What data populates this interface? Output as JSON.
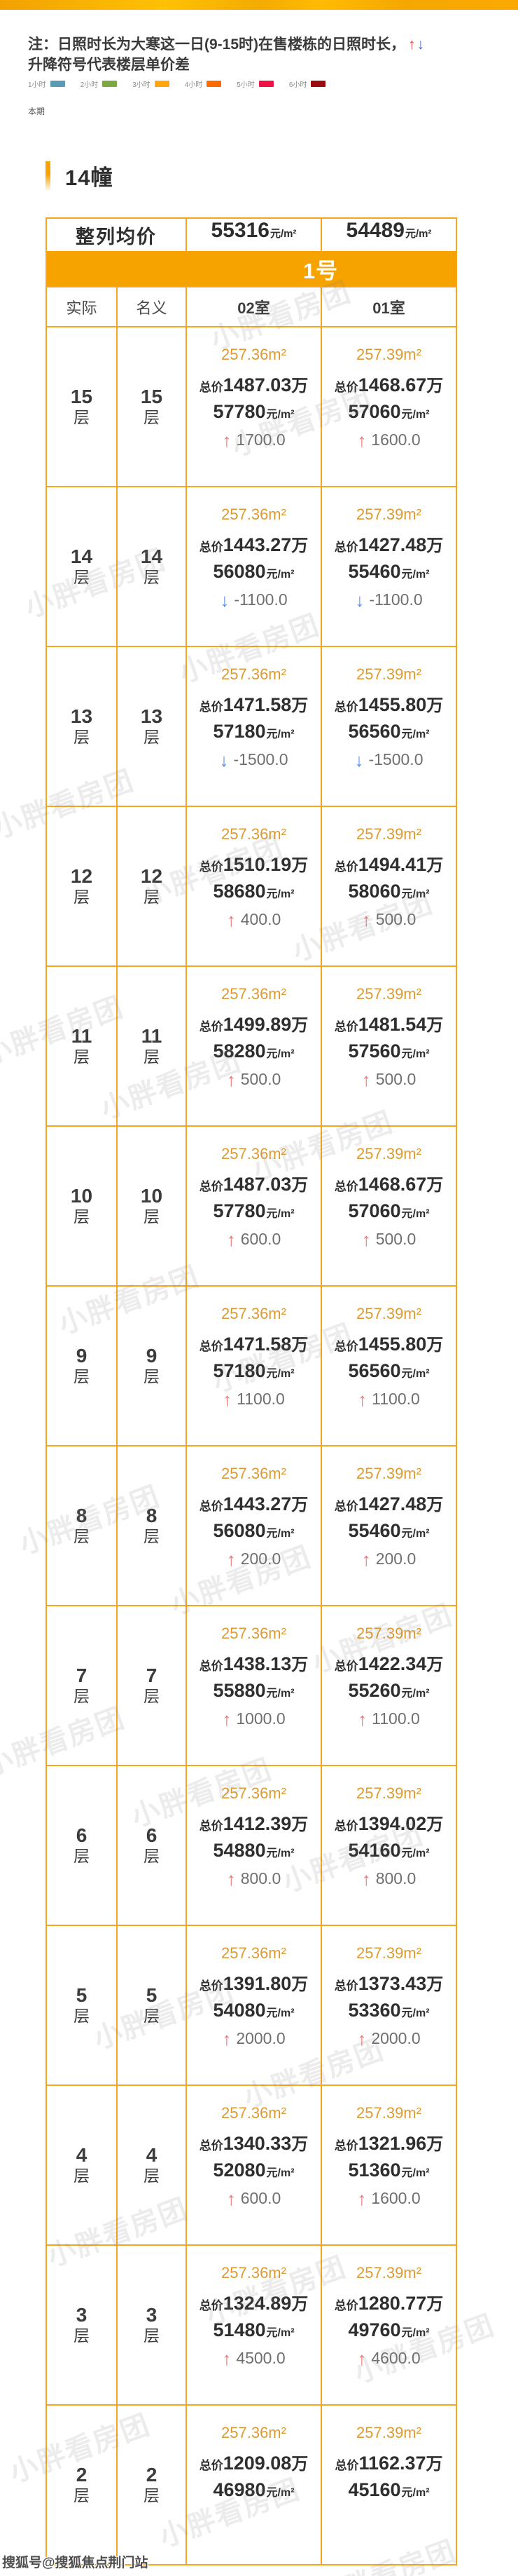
{
  "note": {
    "text_before_arrows": "注：日照时长为大寒这一日(9-15时)在售楼栋的日照时长，",
    "text_after_arrows": "升降符号代表楼层单价差"
  },
  "labels": {
    "up_glyph": "↑",
    "down_glyph": "↓",
    "floor_suffix": "层",
    "total_prefix": "总价",
    "total_suffix": "万",
    "price_unit": "元/m²"
  },
  "legend": [
    {
      "label": "1小时",
      "color": "#5b9ab5"
    },
    {
      "label": "2小时",
      "color": "#7ca844"
    },
    {
      "label": "3小时",
      "color": "#ffa60f"
    },
    {
      "label": "4小时",
      "color": "#ff6a00"
    },
    {
      "label": "5小时",
      "color": "#f01246"
    },
    {
      "label": "6小时",
      "color": "#9b0a0e"
    }
  ],
  "period_label": "本期",
  "building_title": "14幢",
  "summary": {
    "label": "整列均价",
    "values": [
      "55316",
      "54489"
    ],
    "unit": "元/m²"
  },
  "group_label": "1号",
  "columns": [
    "实际",
    "名义",
    "02室",
    "01室"
  ],
  "watermark": "小胖看房团",
  "footer": "搜狐号@搜狐焦点荆门站",
  "rows": [
    {
      "actual": "15",
      "nominal": "15",
      "units": [
        {
          "area": "257.36m²",
          "total": "1487.03",
          "price": "57780",
          "dir": "up",
          "change": "1700.0"
        },
        {
          "area": "257.39m²",
          "total": "1468.67",
          "price": "57060",
          "dir": "up",
          "change": "1600.0"
        }
      ]
    },
    {
      "actual": "14",
      "nominal": "14",
      "units": [
        {
          "area": "257.36m²",
          "total": "1443.27",
          "price": "56080",
          "dir": "down",
          "change": "-1100.0"
        },
        {
          "area": "257.39m²",
          "total": "1427.48",
          "price": "55460",
          "dir": "down",
          "change": "-1100.0"
        }
      ]
    },
    {
      "actual": "13",
      "nominal": "13",
      "units": [
        {
          "area": "257.36m²",
          "total": "1471.58",
          "price": "57180",
          "dir": "down",
          "change": "-1500.0"
        },
        {
          "area": "257.39m²",
          "total": "1455.80",
          "price": "56560",
          "dir": "down",
          "change": "-1500.0"
        }
      ]
    },
    {
      "actual": "12",
      "nominal": "12",
      "units": [
        {
          "area": "257.36m²",
          "total": "1510.19",
          "price": "58680",
          "dir": "up",
          "change": "400.0"
        },
        {
          "area": "257.39m²",
          "total": "1494.41",
          "price": "58060",
          "dir": "up",
          "change": "500.0"
        }
      ]
    },
    {
      "actual": "11",
      "nominal": "11",
      "units": [
        {
          "area": "257.36m²",
          "total": "1499.89",
          "price": "58280",
          "dir": "up",
          "change": "500.0"
        },
        {
          "area": "257.39m²",
          "total": "1481.54",
          "price": "57560",
          "dir": "up",
          "change": "500.0"
        }
      ]
    },
    {
      "actual": "10",
      "nominal": "10",
      "units": [
        {
          "area": "257.36m²",
          "total": "1487.03",
          "price": "57780",
          "dir": "up",
          "change": "600.0"
        },
        {
          "area": "257.39m²",
          "total": "1468.67",
          "price": "57060",
          "dir": "up",
          "change": "500.0"
        }
      ]
    },
    {
      "actual": "9",
      "nominal": "9",
      "units": [
        {
          "area": "257.36m²",
          "total": "1471.58",
          "price": "57180",
          "dir": "up",
          "change": "1100.0"
        },
        {
          "area": "257.39m²",
          "total": "1455.80",
          "price": "56560",
          "dir": "up",
          "change": "1100.0"
        }
      ]
    },
    {
      "actual": "8",
      "nominal": "8",
      "units": [
        {
          "area": "257.36m²",
          "total": "1443.27",
          "price": "56080",
          "dir": "up",
          "change": "200.0"
        },
        {
          "area": "257.39m²",
          "total": "1427.48",
          "price": "55460",
          "dir": "up",
          "change": "200.0"
        }
      ]
    },
    {
      "actual": "7",
      "nominal": "7",
      "units": [
        {
          "area": "257.36m²",
          "total": "1438.13",
          "price": "55880",
          "dir": "up",
          "change": "1000.0"
        },
        {
          "area": "257.39m²",
          "total": "1422.34",
          "price": "55260",
          "dir": "up",
          "change": "1100.0"
        }
      ]
    },
    {
      "actual": "6",
      "nominal": "6",
      "units": [
        {
          "area": "257.36m²",
          "total": "1412.39",
          "price": "54880",
          "dir": "up",
          "change": "800.0"
        },
        {
          "area": "257.39m²",
          "total": "1394.02",
          "price": "54160",
          "dir": "up",
          "change": "800.0"
        }
      ]
    },
    {
      "actual": "5",
      "nominal": "5",
      "units": [
        {
          "area": "257.36m²",
          "total": "1391.80",
          "price": "54080",
          "dir": "up",
          "change": "2000.0"
        },
        {
          "area": "257.39m²",
          "total": "1373.43",
          "price": "53360",
          "dir": "up",
          "change": "2000.0"
        }
      ]
    },
    {
      "actual": "4",
      "nominal": "4",
      "units": [
        {
          "area": "257.36m²",
          "total": "1340.33",
          "price": "52080",
          "dir": "up",
          "change": "600.0"
        },
        {
          "area": "257.39m²",
          "total": "1321.96",
          "price": "51360",
          "dir": "up",
          "change": "1600.0"
        }
      ]
    },
    {
      "actual": "3",
      "nominal": "3",
      "units": [
        {
          "area": "257.36m²",
          "total": "1324.89",
          "price": "51480",
          "dir": "up",
          "change": "4500.0"
        },
        {
          "area": "257.39m²",
          "total": "1280.77",
          "price": "49760",
          "dir": "up",
          "change": "4600.0"
        }
      ]
    },
    {
      "actual": "2",
      "nominal": "2",
      "units": [
        {
          "area": "257.36m²",
          "total": "1209.08",
          "price": "46980",
          "dir": null,
          "change": null
        },
        {
          "area": "257.39m²",
          "total": "1162.37",
          "price": "45160",
          "dir": null,
          "change": null
        }
      ]
    }
  ]
}
